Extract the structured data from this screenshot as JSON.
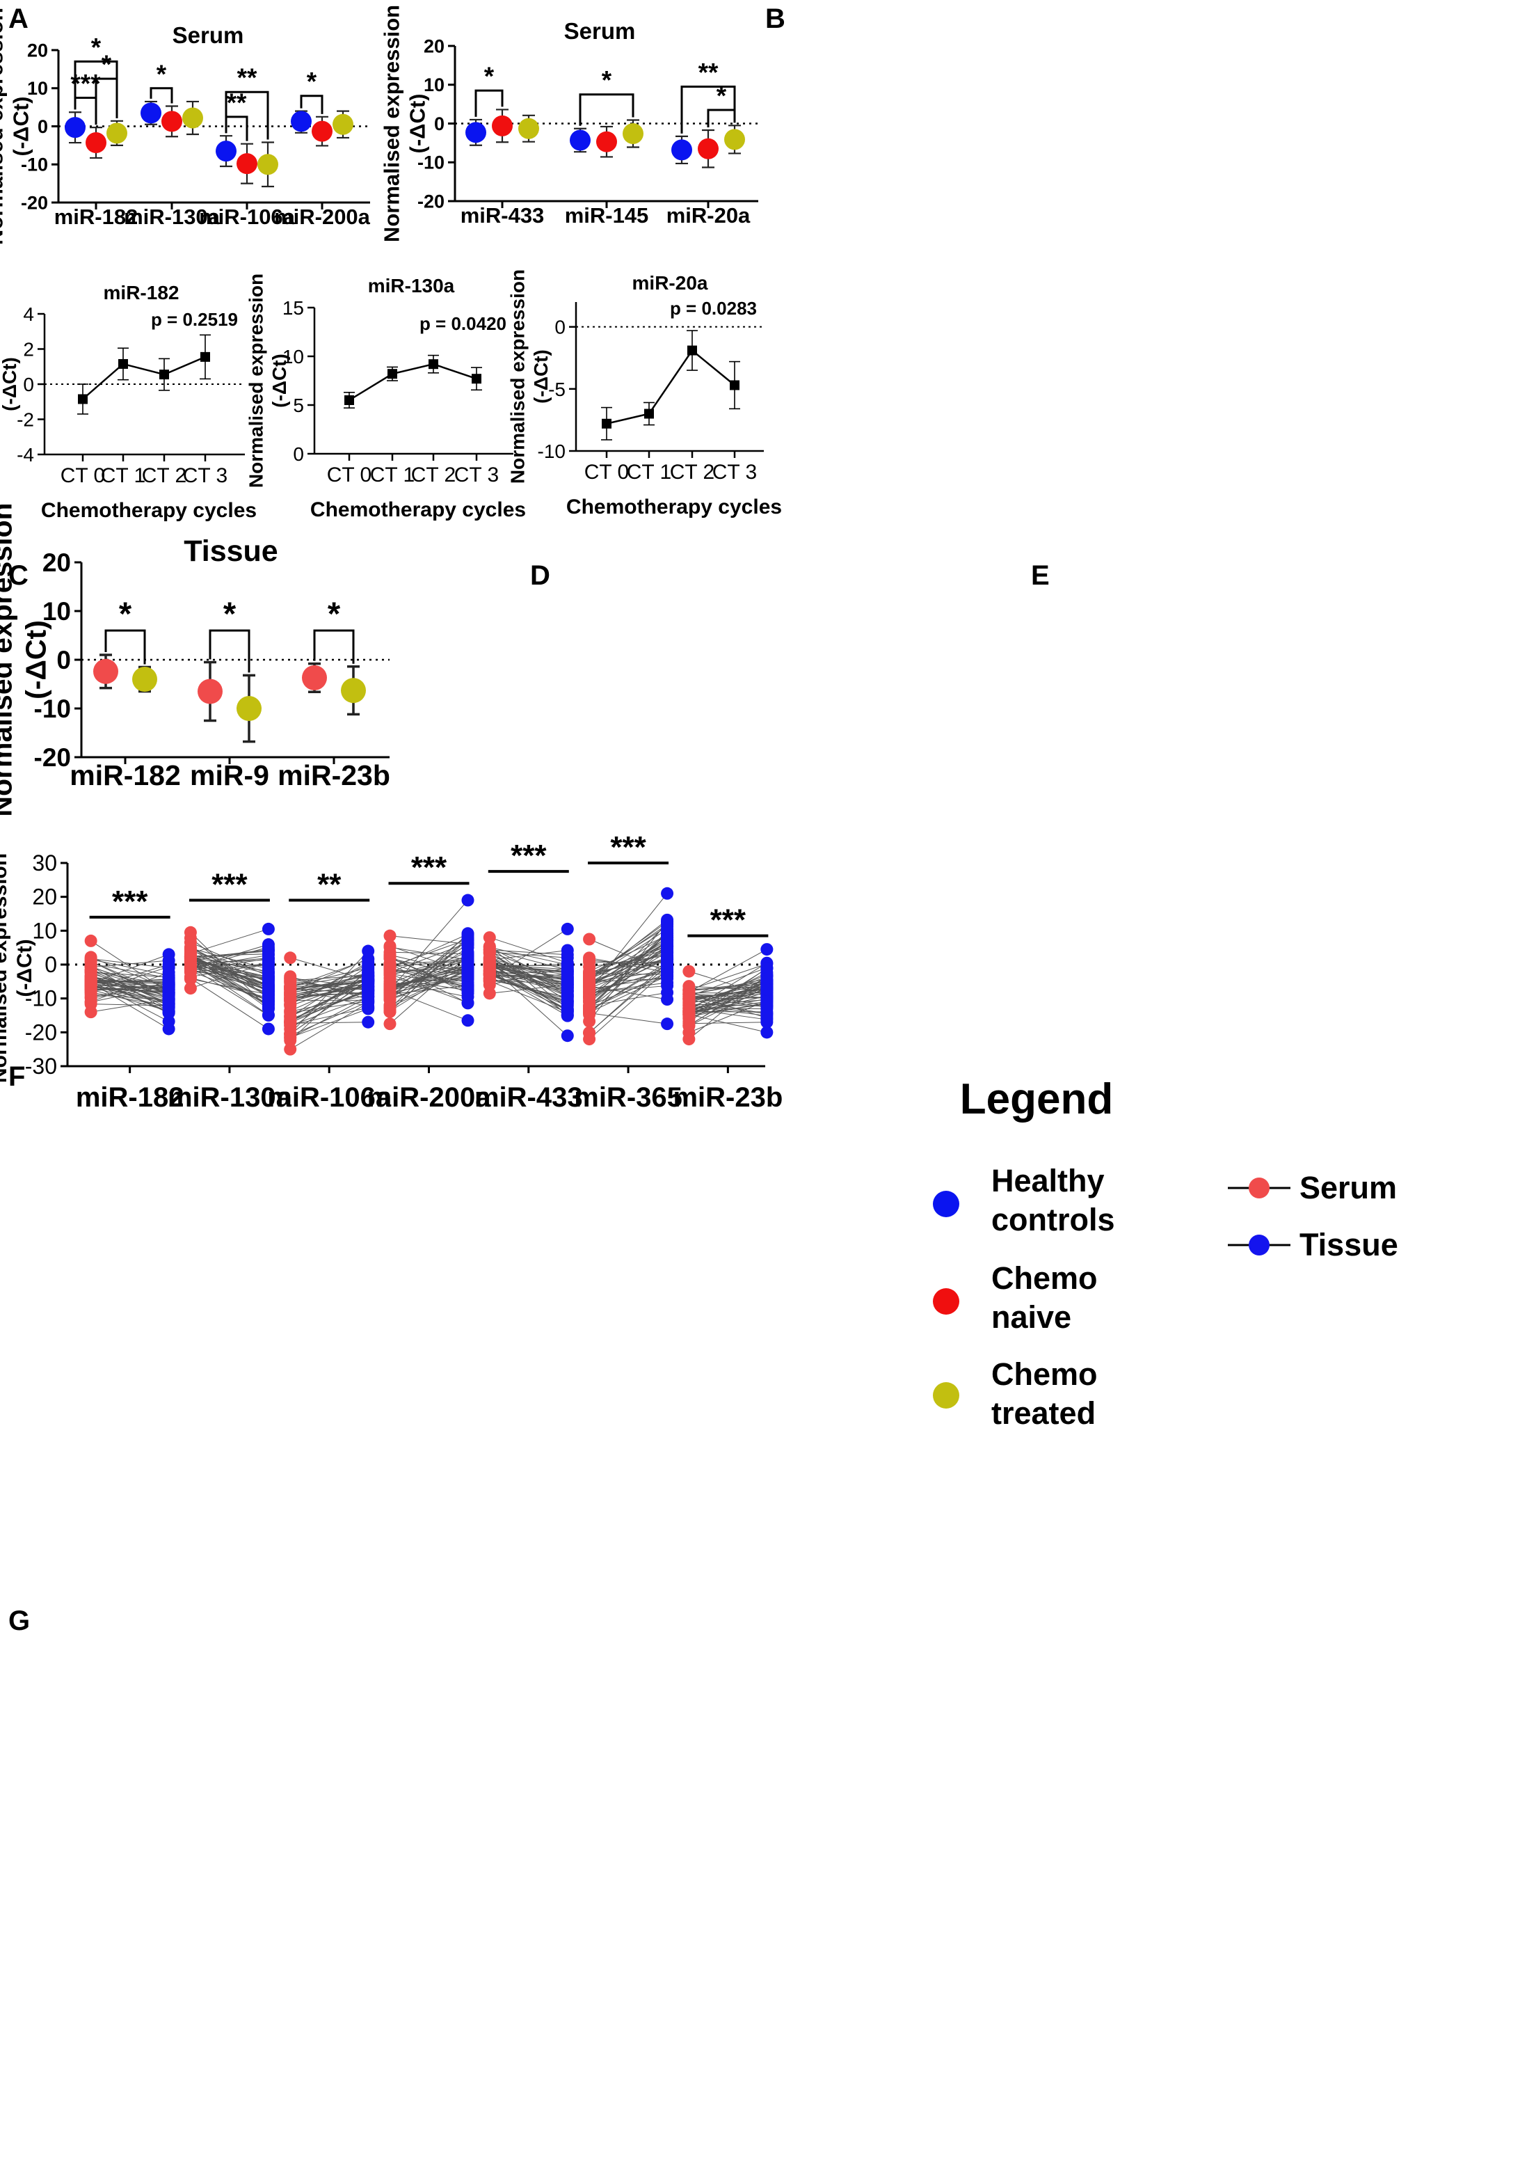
{
  "colors": {
    "healthy": "#0a14f0",
    "naive": "#f00f0f",
    "treated": "#c2bf10",
    "serum": "#f04b4b",
    "tissue": "#1414ee",
    "black": "#000000"
  },
  "panel_labels": {
    "a": "A",
    "b": "B",
    "c": "C",
    "d": "D",
    "e": "E",
    "f": "F",
    "g": "G"
  },
  "legend": {
    "title": "Legend",
    "groups": [
      {
        "key": "healthy",
        "lines": [
          "Healthy",
          "controls"
        ]
      },
      {
        "key": "naive",
        "lines": [
          "Chemo",
          "naive"
        ]
      },
      {
        "key": "treated",
        "lines": [
          "Chemo",
          "treated"
        ]
      }
    ],
    "sources": [
      {
        "key": "serum",
        "label": "Serum"
      },
      {
        "key": "tissue",
        "label": "Tissue"
      }
    ]
  },
  "chart_data": [
    {
      "id": "A",
      "type": "scatter",
      "title": "Serum",
      "ylabel": [
        "Normalised expression",
        "(-ΔCt)"
      ],
      "ylim": [
        -20,
        20
      ],
      "yticks": [
        "20",
        "10",
        "0",
        "-10",
        "-20"
      ],
      "categories": [
        "miR-182",
        "miR-130a",
        "miR-106a",
        "miR-200a"
      ],
      "series": [
        {
          "name": "Healthy controls",
          "color": "healthy",
          "values": [
            -0.3,
            3.5,
            -6.5,
            1.3
          ],
          "err_low": [
            4.0,
            3.0,
            4.0,
            3.0
          ],
          "err_high": [
            4.0,
            3.0,
            4.0,
            2.7
          ]
        },
        {
          "name": "Chemo naive",
          "color": "naive",
          "values": [
            -4.3,
            1.3,
            -9.8,
            -1.3
          ],
          "err_low": [
            4.0,
            4.0,
            5.2,
            3.8
          ],
          "err_high": [
            4.0,
            4.0,
            5.2,
            3.8
          ]
        },
        {
          "name": "Chemo treated",
          "color": "treated",
          "values": [
            -1.8,
            2.2,
            -10.0,
            0.5
          ],
          "err_low": [
            3.2,
            4.3,
            5.8,
            3.5
          ],
          "err_high": [
            3.2,
            4.3,
            5.8,
            3.5
          ]
        }
      ],
      "significance": [
        {
          "label": "*",
          "from": [
            0,
            0
          ],
          "to": [
            0,
            2
          ],
          "y": 17
        },
        {
          "label": "*",
          "from": [
            0,
            1
          ],
          "to": [
            0,
            2
          ],
          "y": 12.5
        },
        {
          "label": "***",
          "from": [
            0,
            0
          ],
          "to": [
            0,
            1
          ],
          "y": 7.5
        },
        {
          "label": "*",
          "from": [
            1,
            0
          ],
          "to": [
            1,
            1
          ],
          "y": 10
        },
        {
          "label": "**",
          "from": [
            2,
            0
          ],
          "to": [
            2,
            2
          ],
          "y": 9
        },
        {
          "label": "**",
          "from": [
            2,
            0
          ],
          "to": [
            2,
            1
          ],
          "y": 2.5
        },
        {
          "label": "*",
          "from": [
            3,
            0
          ],
          "to": [
            3,
            1
          ],
          "y": 8
        }
      ]
    },
    {
      "id": "B",
      "type": "scatter",
      "title": "Serum",
      "ylabel": [
        "Normalised expression",
        "(-ΔCt)"
      ],
      "ylim": [
        -20,
        20
      ],
      "yticks": [
        "20",
        "10",
        "0",
        "-10",
        "-20"
      ],
      "categories": [
        "miR-433",
        "miR-145",
        "miR-20a"
      ],
      "series": [
        {
          "name": "Healthy controls",
          "color": "healthy",
          "values": [
            -2.3,
            -4.3,
            -6.8
          ],
          "err_low": [
            3.3,
            3.0,
            3.5
          ],
          "err_high": [
            3.3,
            3.0,
            3.5
          ]
        },
        {
          "name": "Chemo naive",
          "color": "naive",
          "values": [
            -0.6,
            -4.7,
            -6.5
          ],
          "err_low": [
            4.2,
            3.9,
            4.8
          ],
          "err_high": [
            4.2,
            3.9,
            4.8
          ]
        },
        {
          "name": "Chemo treated",
          "color": "treated",
          "values": [
            -1.3,
            -2.6,
            -4.1
          ],
          "err_low": [
            3.4,
            3.5,
            3.6
          ],
          "err_high": [
            3.4,
            3.5,
            3.6
          ]
        }
      ],
      "significance": [
        {
          "label": "*",
          "from": [
            0,
            0
          ],
          "to": [
            0,
            1
          ],
          "y": 8.5
        },
        {
          "label": "*",
          "from": [
            1,
            0
          ],
          "to": [
            1,
            2
          ],
          "y": 7.5
        },
        {
          "label": "**",
          "from": [
            2,
            0
          ],
          "to": [
            2,
            2
          ],
          "y": 9.5
        },
        {
          "label": "*",
          "from": [
            2,
            1
          ],
          "to": [
            2,
            2
          ],
          "y": 3.5
        }
      ]
    },
    {
      "id": "C",
      "type": "line",
      "title": "miR-182",
      "ylabel": [
        "Normalised expression",
        "(-ΔCt)"
      ],
      "xlabel": "Chemotherapy cycles",
      "ylim": [
        -4,
        4
      ],
      "yticks": [
        "4",
        "2",
        "0",
        "-2",
        "-4"
      ],
      "categories": [
        "CT 0",
        "CT 1",
        "CT 2",
        "CT 3"
      ],
      "values": [
        -0.85,
        1.15,
        0.55,
        1.55
      ],
      "err": [
        0.85,
        0.9,
        0.9,
        1.25
      ],
      "pvalue": "p = 0.2519",
      "refline": 0
    },
    {
      "id": "D",
      "type": "line",
      "title": "miR-130a",
      "ylabel": [
        "Normalised expression",
        "(-ΔCt)"
      ],
      "xlabel": "Chemotherapy cycles",
      "ylim": [
        0,
        15
      ],
      "yticks": [
        "15",
        "10",
        "5",
        "0"
      ],
      "categories": [
        "CT 0",
        "CT 1",
        "CT 2",
        "CT 3"
      ],
      "values": [
        5.5,
        8.2,
        9.2,
        7.7
      ],
      "err": [
        0.8,
        0.7,
        0.9,
        1.15
      ],
      "pvalue": "p = 0.0420",
      "refline": null
    },
    {
      "id": "E",
      "type": "line",
      "title": "miR-20a",
      "ylabel": [
        "Normalised expression",
        "(-ΔCt)"
      ],
      "xlabel": "Chemotherapy cycles",
      "ylim": [
        -10,
        2
      ],
      "yticks": [
        "0",
        "-5",
        "-10"
      ],
      "categories": [
        "CT 0",
        "CT 1",
        "CT 2",
        "CT 3"
      ],
      "values": [
        -7.8,
        -7.0,
        -1.9,
        -4.7
      ],
      "err": [
        1.3,
        0.9,
        1.6,
        1.9
      ],
      "pvalue": "p = 0.0283",
      "refline": 0
    },
    {
      "id": "F",
      "type": "scatter",
      "title": "Tissue",
      "ylabel": [
        "Normalised expression",
        "(-ΔCt)"
      ],
      "ylim": [
        -20,
        20
      ],
      "yticks": [
        "20",
        "10",
        "0",
        "-10",
        "-20"
      ],
      "categories": [
        "miR-182",
        "miR-9",
        "miR-23b"
      ],
      "series": [
        {
          "name": "Chemo naive",
          "color": "serum",
          "values": [
            -2.4,
            -6.5,
            -3.7
          ],
          "err_low": [
            3.4,
            6.0,
            2.9
          ],
          "err_high": [
            3.4,
            6.0,
            2.9
          ]
        },
        {
          "name": "Chemo treated",
          "color": "treated",
          "values": [
            -4.0,
            -10.0,
            -6.3
          ],
          "err_low": [
            2.5,
            6.8,
            4.9
          ],
          "err_high": [
            2.5,
            6.8,
            4.9
          ]
        }
      ],
      "significance": [
        {
          "label": "*",
          "from": [
            0,
            0
          ],
          "to": [
            0,
            1
          ],
          "y": 6
        },
        {
          "label": "*",
          "from": [
            1,
            0
          ],
          "to": [
            1,
            1
          ],
          "y": 6
        },
        {
          "label": "*",
          "from": [
            2,
            0
          ],
          "to": [
            2,
            1
          ],
          "y": 6
        }
      ]
    },
    {
      "id": "G",
      "type": "scatter",
      "subtype": "paired",
      "ylabel": [
        "Normalised expression",
        "(-ΔCt)"
      ],
      "ylim": [
        -30,
        30
      ],
      "yticks": [
        "30",
        "20",
        "10",
        "0",
        "-10",
        "-20",
        "-30"
      ],
      "categories": [
        "miR-182",
        "miR-130a",
        "miR-106a",
        "miR-200a",
        "miR-433",
        "miR-365",
        "miR-23b"
      ],
      "n_pairs": 60,
      "serum_ranges": [
        [
          -14,
          7
        ],
        [
          -7,
          9.5
        ],
        [
          -25,
          2
        ],
        [
          -17.5,
          8.5
        ],
        [
          -8.5,
          8
        ],
        [
          -22,
          7.5
        ],
        [
          -22,
          -2
        ]
      ],
      "tissue_ranges": [
        [
          -19,
          3
        ],
        [
          -19,
          10.5
        ],
        [
          -17,
          4
        ],
        [
          -16.5,
          19
        ],
        [
          -21,
          10.5
        ],
        [
          -17.5,
          21
        ],
        [
          -20,
          4.5
        ]
      ],
      "significance": [
        "***",
        "***",
        "**",
        "***",
        "***",
        "***",
        "***"
      ],
      "sig_y": [
        14,
        19,
        19,
        24,
        27.5,
        30,
        8.5
      ]
    }
  ]
}
